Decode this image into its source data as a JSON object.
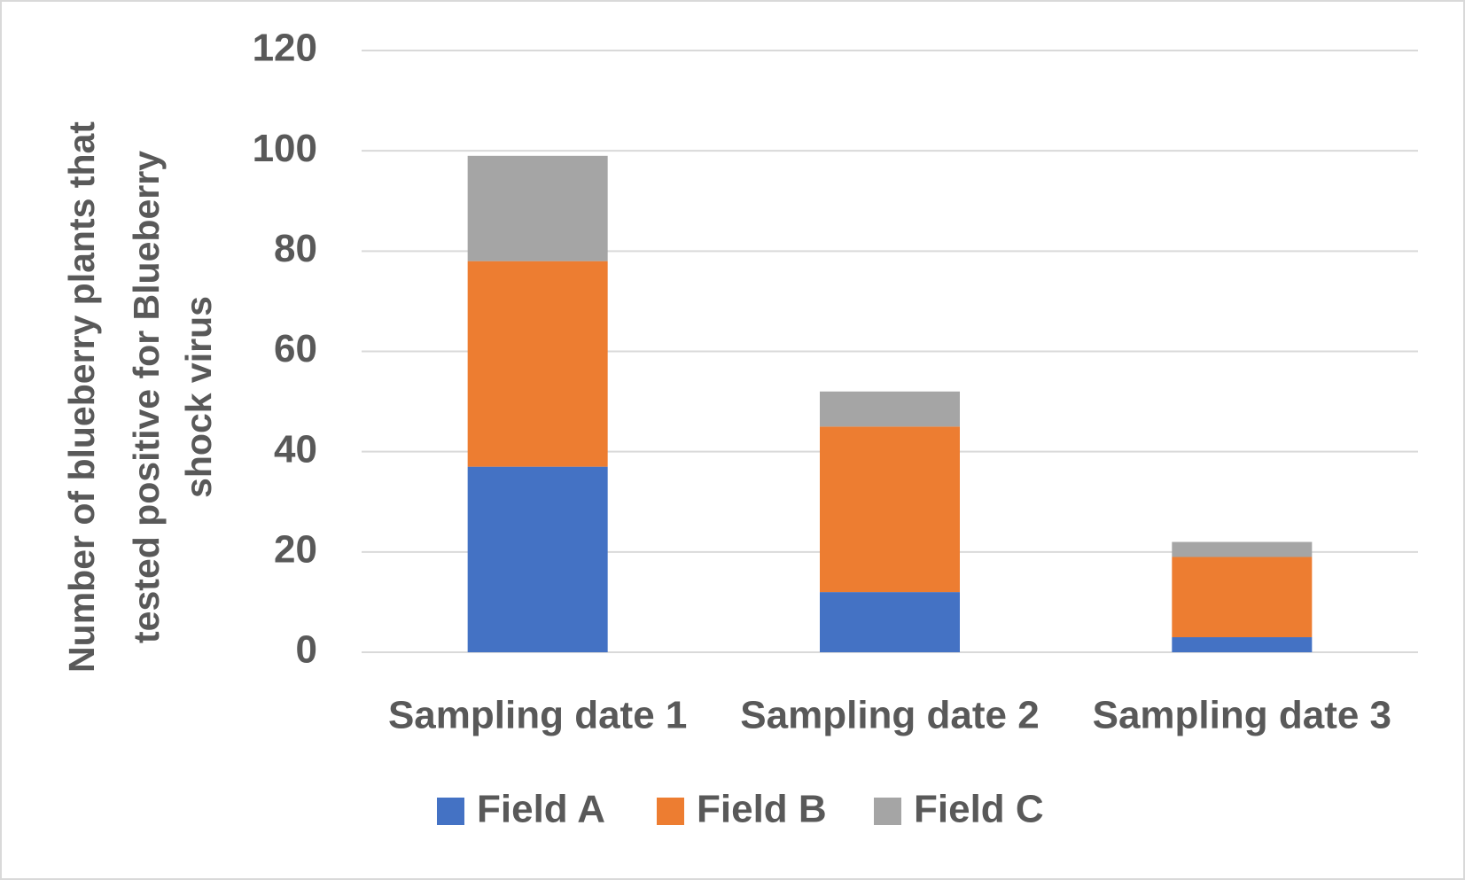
{
  "chart_data": {
    "type": "stacked-bar",
    "ylabel": [
      "Number of blueberry plants  that",
      "tested positive for Blueberry",
      "shock virus"
    ],
    "categories": [
      "Sampling date 1",
      "Sampling date 2",
      "Sampling date 3"
    ],
    "series": [
      {
        "name": "Field A",
        "color": "#4472c4",
        "values": [
          37,
          12,
          3
        ]
      },
      {
        "name": "Field B",
        "color": "#ed7d31",
        "values": [
          41,
          33,
          16
        ]
      },
      {
        "name": "Field C",
        "color": "#a5a5a5",
        "values": [
          21,
          7,
          3
        ]
      }
    ],
    "ylim": [
      0,
      120
    ],
    "yticks": [
      0,
      20,
      40,
      60,
      80,
      100,
      120
    ],
    "grid": true,
    "legend": "bottom"
  }
}
